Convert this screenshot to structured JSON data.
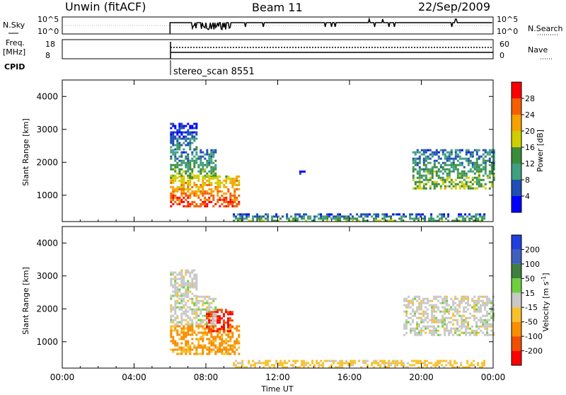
{
  "header": {
    "station": "Unwin (fitACF)",
    "beam": "Beam 11",
    "date": "22/Sep/2009"
  },
  "top_panels": {
    "nsky_label": "N.Sky",
    "nsky_ticks": [
      "10^5",
      "10^0"
    ],
    "nsearch_label": "N.Search",
    "nsearch_ticks": [
      "10^5",
      "10^0"
    ],
    "freq_label": "Freq.",
    "freq_unit": "[MHz]",
    "freq_ticks": [
      "18",
      "8"
    ],
    "nave_label": "Nave",
    "nave_ticks": [
      "60",
      "0"
    ],
    "cpid_label": "CPID",
    "cpid_value": "stereo_scan 8551"
  },
  "colors": {
    "power_scale": [
      "#0000ff",
      "#1f4fb4",
      "#3f9f7f",
      "#3a8c3a",
      "#cfcf00",
      "#f5a100",
      "#f55f00",
      "#ff0000"
    ],
    "velocity_scale": [
      "#1f3fdf",
      "#3f5fbf",
      "#3f7f3f",
      "#6fcf3f",
      "#c8c8c8",
      "#f7c12d",
      "#f78f00",
      "#f04f00",
      "#ff0000"
    ]
  },
  "chart_data": [
    {
      "type": "heatmap",
      "panel": "power",
      "ylabel": "Slant Range [km]",
      "xlabel": "",
      "xlim": [
        "00:00",
        "24:00"
      ],
      "ylim": [
        200,
        4500
      ],
      "y_ticks": [
        1000,
        2000,
        3000,
        4000
      ],
      "colorbar_label": "Power [dB]",
      "colorbar_ticks": [
        4,
        8,
        12,
        16,
        20,
        24,
        28
      ],
      "regions": [
        {
          "x0": 6.0,
          "x1": 9.8,
          "y0": 650,
          "y1": 1600,
          "level": 24
        },
        {
          "x0": 6.0,
          "x1": 8.5,
          "y0": 1500,
          "y1": 2400,
          "level": 12
        },
        {
          "x0": 6.0,
          "x1": 7.5,
          "y0": 2400,
          "y1": 3200,
          "level": 6
        },
        {
          "x0": 13.2,
          "x1": 13.5,
          "y0": 1650,
          "y1": 1750,
          "level": 6
        },
        {
          "x0": 19.5,
          "x1": 24.0,
          "y0": 1200,
          "y1": 2400,
          "level": 12
        },
        {
          "x0": 9.5,
          "x1": 23.5,
          "y0": 250,
          "y1": 450,
          "level": 10
        }
      ]
    },
    {
      "type": "heatmap",
      "panel": "velocity",
      "ylabel": "Slant Range [km]",
      "xlabel": "Time UT",
      "x_ticks": [
        "00:00",
        "04:00",
        "08:00",
        "12:00",
        "16:00",
        "20:00",
        "00:00"
      ],
      "ylim": [
        200,
        4500
      ],
      "y_ticks": [
        1000,
        2000,
        3000,
        4000
      ],
      "colorbar_label": "Velocity [m s^-1]",
      "colorbar_ticks": [
        200,
        100,
        50,
        15,
        -15,
        -50,
        -100,
        -200
      ],
      "regions": [
        {
          "x0": 6.0,
          "x1": 9.8,
          "y0": 600,
          "y1": 1500,
          "level": -60
        },
        {
          "x0": 8.0,
          "x1": 9.5,
          "y0": 1300,
          "y1": 2000,
          "level": -200
        },
        {
          "x0": 6.0,
          "x1": 8.5,
          "y0": 1500,
          "y1": 2400,
          "level": 0
        },
        {
          "x0": 6.0,
          "x1": 7.5,
          "y0": 2400,
          "y1": 3200,
          "level": 0
        },
        {
          "x0": 19.0,
          "x1": 24.0,
          "y0": 1200,
          "y1": 2400,
          "level": 0
        },
        {
          "x0": 9.5,
          "x1": 23.5,
          "y0": 250,
          "y1": 450,
          "level": -30
        }
      ]
    }
  ]
}
